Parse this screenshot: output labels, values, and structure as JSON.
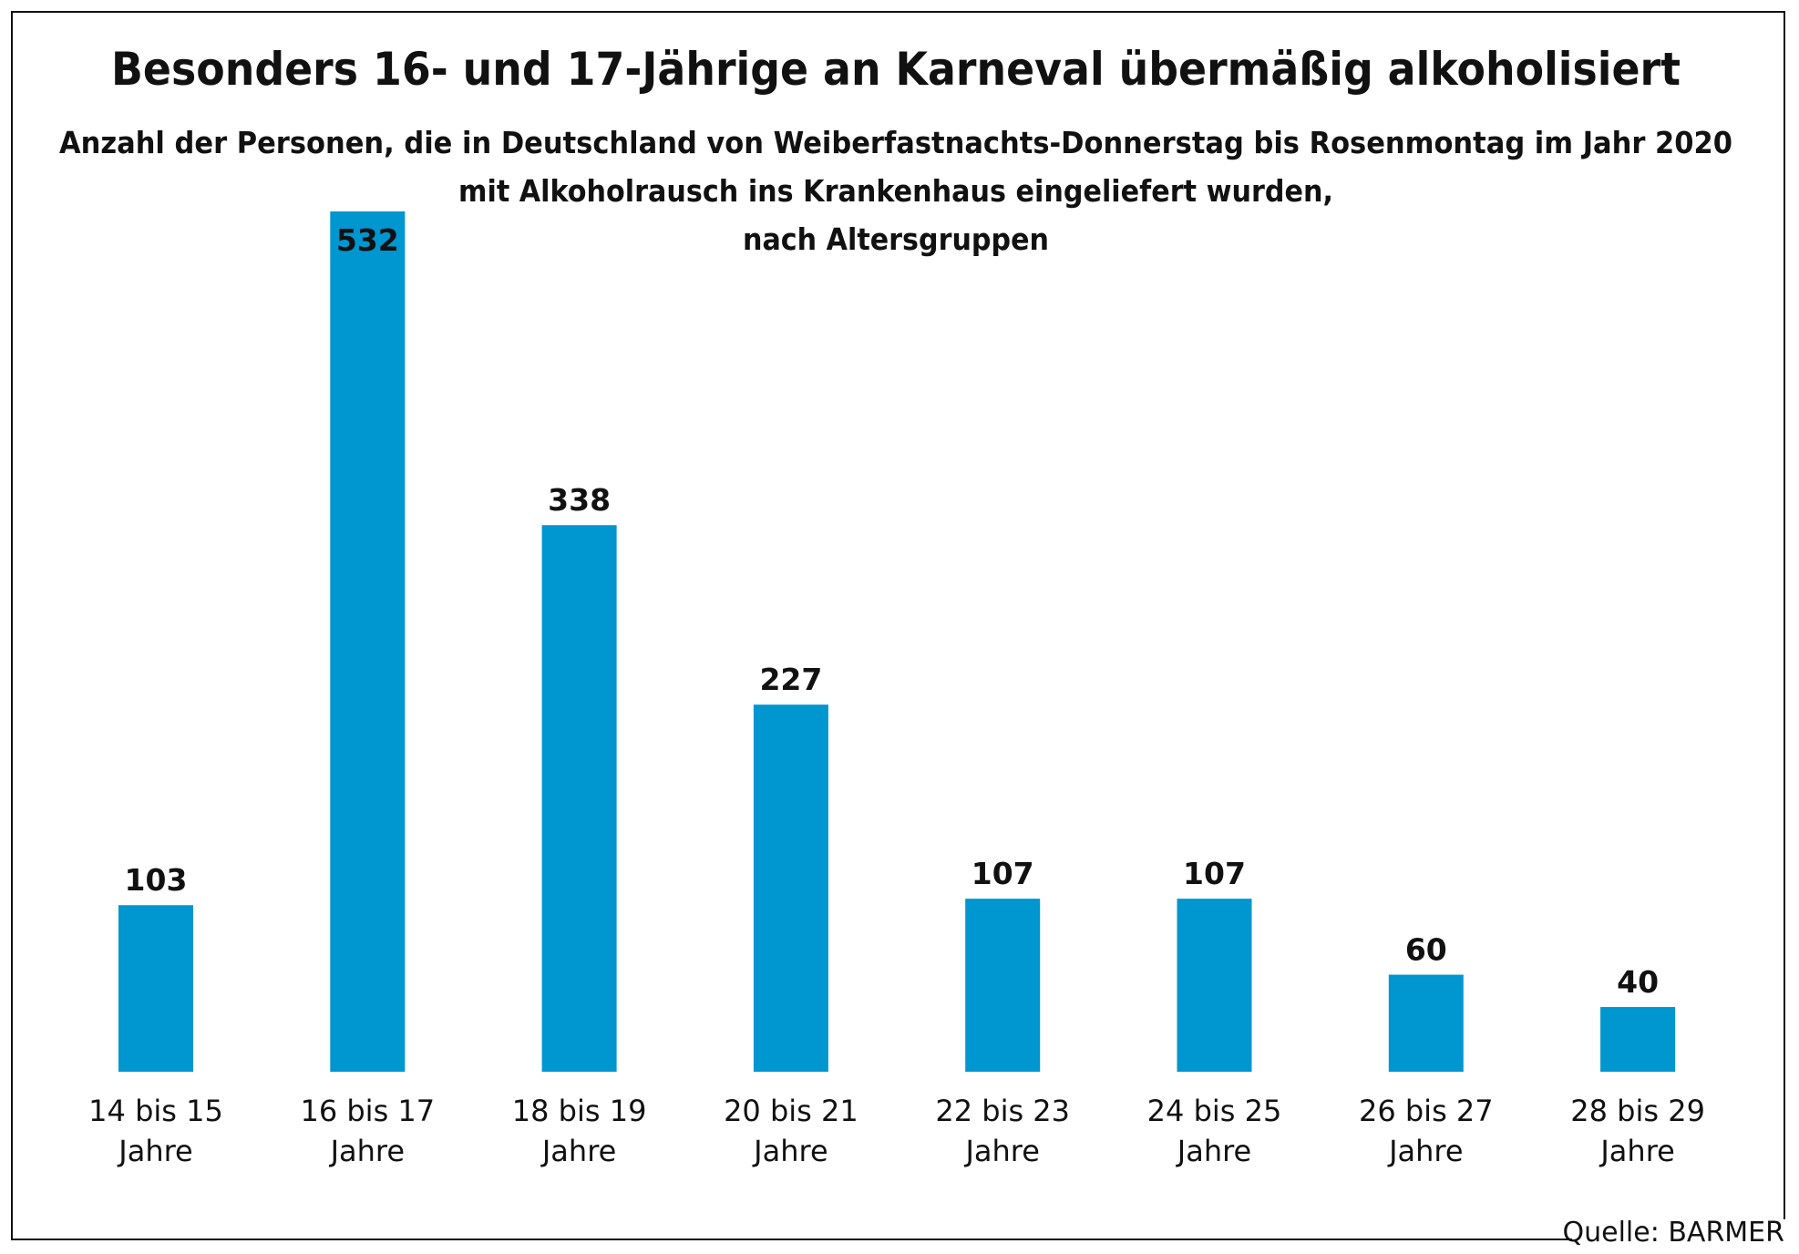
{
  "chart_data": {
    "type": "bar",
    "title": "Besonders 16- und 17-Jährige an Karneval übermäßig alkoholisiert",
    "subtitle": [
      "Anzahl der Personen, die in Deutschland von Weiberfastnachts-Donnerstag bis Rosenmontag im Jahr 2020",
      "mit Alkoholrausch ins Krankenhaus eingeliefert wurden,",
      "nach Altersgruppen"
    ],
    "categories": [
      [
        "14 bis 15",
        "Jahre"
      ],
      [
        "16 bis 17",
        "Jahre"
      ],
      [
        "18 bis 19",
        "Jahre"
      ],
      [
        "20 bis 21",
        "Jahre"
      ],
      [
        "22 bis 23",
        "Jahre"
      ],
      [
        "24 bis 25",
        "Jahre"
      ],
      [
        "26 bis 27",
        "Jahre"
      ],
      [
        "28 bis 29",
        "Jahre"
      ]
    ],
    "values": [
      103,
      532,
      338,
      227,
      107,
      107,
      60,
      40
    ],
    "value_labels": [
      "103",
      "532",
      "338",
      "227",
      "107",
      "107",
      "60",
      "40"
    ],
    "bar_color": "#0096cf",
    "xlabel": "",
    "ylabel": "",
    "ylim": [
      0,
      532
    ],
    "grid": false,
    "source": "Quelle: BARMER"
  }
}
